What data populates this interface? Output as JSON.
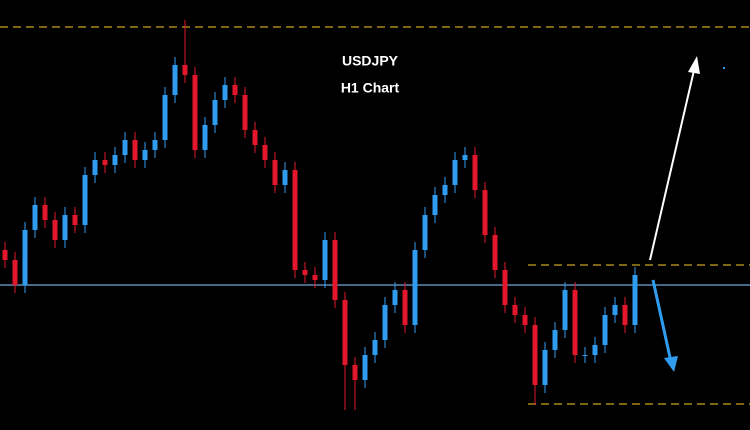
{
  "chart_data": {
    "type": "candlestick",
    "title": "USDJPY",
    "subtitle": "H1 Chart",
    "ylim": [
      0,
      430
    ],
    "up_color": "#2f9cf0",
    "down_color": "#e3172c",
    "open": [
      180,
      170,
      145,
      200,
      225,
      210,
      190,
      215,
      205,
      255,
      270,
      265,
      275,
      290,
      270,
      280,
      290,
      335,
      365,
      355,
      280,
      305,
      330,
      345,
      335,
      300,
      285,
      270,
      245,
      260,
      160,
      155,
      150,
      190,
      130,
      65,
      50,
      75,
      90,
      125,
      140,
      105,
      180,
      215,
      235,
      245,
      270,
      275,
      240,
      195,
      160,
      125,
      115,
      105,
      45,
      80,
      100,
      140,
      75,
      75,
      85,
      115,
      125,
      105
    ],
    "high": [
      188,
      178,
      208,
      233,
      233,
      218,
      223,
      223,
      263,
      278,
      278,
      283,
      298,
      298,
      288,
      298,
      343,
      373,
      410,
      363,
      313,
      338,
      353,
      353,
      343,
      308,
      293,
      278,
      268,
      268,
      168,
      163,
      198,
      198,
      138,
      73,
      83,
      98,
      133,
      148,
      148,
      188,
      223,
      243,
      253,
      278,
      283,
      283,
      248,
      203,
      168,
      133,
      123,
      113,
      88,
      108,
      148,
      148,
      83,
      93,
      123,
      133,
      133,
      163
    ],
    "low": [
      162,
      137,
      137,
      192,
      202,
      182,
      182,
      197,
      197,
      247,
      257,
      257,
      267,
      262,
      262,
      272,
      282,
      327,
      347,
      272,
      272,
      297,
      322,
      327,
      292,
      277,
      262,
      237,
      237,
      152,
      147,
      142,
      142,
      122,
      20,
      20,
      42,
      67,
      82,
      117,
      97,
      97,
      172,
      207,
      227,
      237,
      262,
      232,
      187,
      152,
      117,
      107,
      97,
      25,
      37,
      72,
      92,
      67,
      67,
      67,
      77,
      107,
      97,
      97
    ],
    "close": [
      170,
      145,
      200,
      225,
      210,
      190,
      215,
      205,
      255,
      270,
      265,
      275,
      290,
      270,
      280,
      290,
      335,
      365,
      355,
      280,
      305,
      330,
      345,
      335,
      300,
      285,
      270,
      245,
      260,
      160,
      155,
      150,
      190,
      130,
      65,
      50,
      75,
      90,
      125,
      140,
      105,
      180,
      215,
      235,
      245,
      270,
      275,
      240,
      195,
      160,
      125,
      115,
      105,
      45,
      80,
      100,
      140,
      75,
      75,
      85,
      115,
      125,
      105,
      155
    ],
    "levels": [
      {
        "value": 403,
        "color": "#c9a21c",
        "style": "dashed"
      },
      {
        "value": 165,
        "color": "#c9a21c",
        "style": "dashed"
      },
      {
        "value": 26,
        "color": "#c9a21c",
        "style": "dashed"
      },
      {
        "value": 145,
        "color": "#6fa8dc",
        "style": "solid"
      }
    ]
  }
}
